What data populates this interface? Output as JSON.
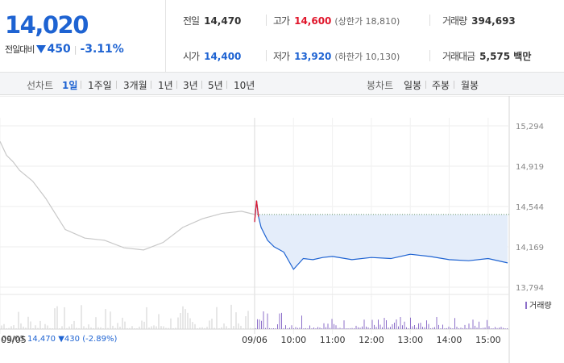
{
  "quote": {
    "price": "14,020",
    "change_label": "전일대비",
    "change_value": "450",
    "change_rate": "-3.11%"
  },
  "stats": {
    "prev_label": "전일",
    "prev_value": "14,470",
    "high_label": "고가",
    "high_value": "14,600",
    "upper_limit_label": "(상한가 18,810)",
    "volume_label": "거래량",
    "volume_value": "394,693",
    "open_label": "시가",
    "open_value": "14,400",
    "low_label": "저가",
    "low_value": "13,920",
    "lower_limit_label": "(하한가 10,130)",
    "amount_label": "거래대금",
    "amount_value": "5,575 백만"
  },
  "tabs": {
    "line_label": "선차트",
    "line_items": [
      "1일",
      "1주일",
      "3개월",
      "1년",
      "3년",
      "5년",
      "10년"
    ],
    "line_active": 0,
    "candle_label": "봉차트",
    "candle_items": [
      "일봉",
      "주봉",
      "월봉"
    ]
  },
  "colors": {
    "down": "#1e63d2",
    "up": "#e0162b",
    "prev_day_line": "#c8c8c8",
    "fill": "#e4edfa",
    "volume_prev": "#cfcfcf",
    "volume_today": "#8c6fc9"
  },
  "chart_data": {
    "type": "line",
    "y_ticks": [
      "15,294",
      "14,919",
      "14,544",
      "14,169",
      "13,794"
    ],
    "x_ticks": [
      "09/05",
      "09/06",
      "10:00",
      "11:00",
      "12:00",
      "13:00",
      "14:00",
      "15:00"
    ],
    "ylim": [
      13794,
      15294
    ],
    "prev_close": 14470,
    "legend_volume": "거래량",
    "series": [
      {
        "name": "",
        "x": [
          "09/05 09:00",
          "09/05 09:10",
          "09/05 09:20",
          "09/05 09:30",
          "09/05 09:50",
          "09/05 10:10",
          "09/05 10:40",
          "09/05 11:10",
          "09/05 11:40",
          "09/05 12:10",
          "09/05 12:40",
          "09/05 13:10",
          "09/05 13:40",
          "09/05 14:10",
          "09/05 14:40",
          "09/05 15:10",
          "09/05 15:30"
        ],
        "y": [
          15150,
          15020,
          14960,
          14880,
          14780,
          14620,
          14330,
          14250,
          14230,
          14160,
          14140,
          14210,
          14350,
          14430,
          14480,
          14500,
          14470
        ]
      },
      {
        "name": "",
        "x": [
          "09:00",
          "09:03",
          "09:06",
          "09:10",
          "09:20",
          "09:30",
          "09:45",
          "10:00",
          "10:15",
          "10:30",
          "10:45",
          "11:00",
          "11:30",
          "12:00",
          "12:30",
          "13:00",
          "13:30",
          "14:00",
          "14:30",
          "15:00",
          "15:30"
        ],
        "y": [
          14400,
          14600,
          14450,
          14350,
          14230,
          14170,
          14120,
          13960,
          14060,
          14050,
          14070,
          14080,
          14050,
          14070,
          14060,
          14100,
          14080,
          14050,
          14040,
          14060,
          14020
        ]
      }
    ],
    "info_date": "09/05",
    "info_close": "14,470",
    "info_change": "430",
    "info_rate": "(-2.89%)"
  }
}
